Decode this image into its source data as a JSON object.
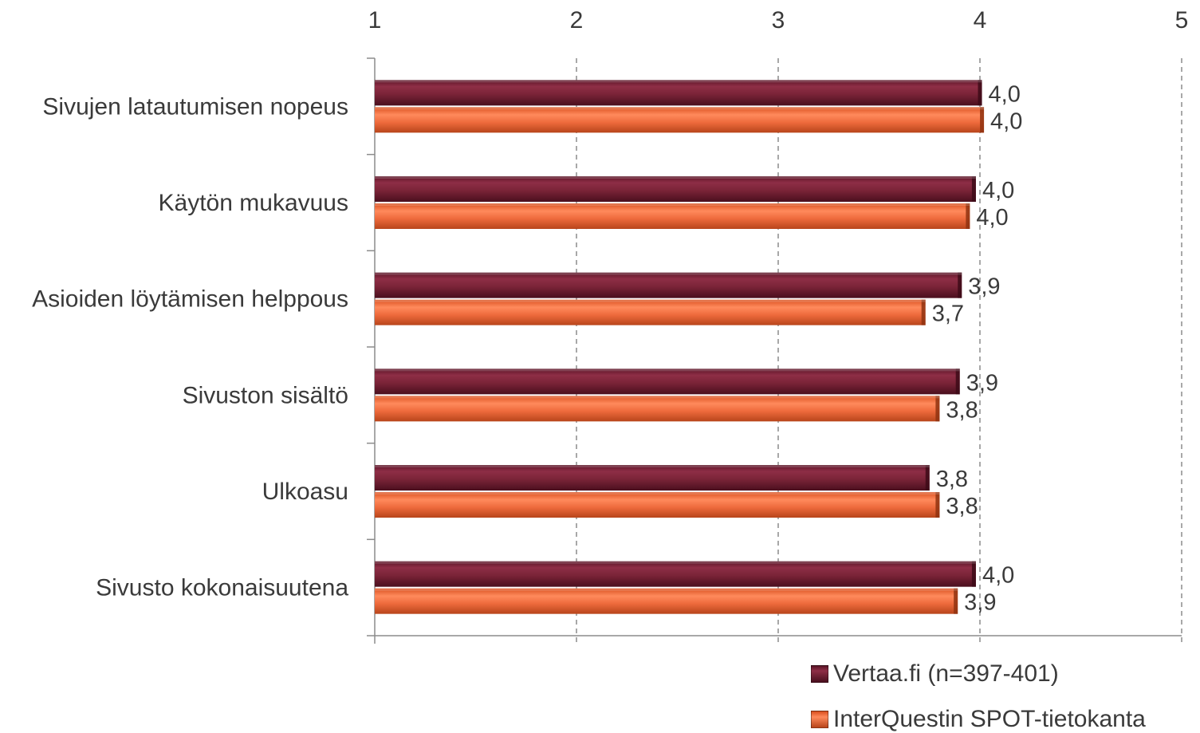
{
  "chart_data": {
    "type": "bar",
    "orientation": "horizontal",
    "categories": [
      "Sivujen latautumisen nopeus",
      "Käytön mukavuus",
      "Asioiden löytämisen helppous",
      "Sivuston sisältö",
      "Ulkoasu",
      "Sivusto kokonaisuutena"
    ],
    "series": [
      {
        "name": "Vertaa.fi (n=397-401)",
        "color": "#7B2438",
        "values": [
          4.01,
          3.98,
          3.91,
          3.9,
          3.75,
          3.98
        ],
        "labels": [
          "4,0",
          "4,0",
          "3,9",
          "3,9",
          "3,8",
          "4,0"
        ]
      },
      {
        "name": "InterQuestin SPOT-tietokanta",
        "color": "#EE6A3C",
        "values": [
          4.02,
          3.95,
          3.73,
          3.8,
          3.8,
          3.89
        ],
        "labels": [
          "4,0",
          "4,0",
          "3,7",
          "3,8",
          "3,8",
          "3,9"
        ]
      }
    ],
    "xlim": [
      1,
      5
    ],
    "xticks": [
      "1",
      "2",
      "3",
      "4",
      "5"
    ],
    "axis_position": "top",
    "grid": "vertical dashed",
    "legend_position": "bottom-right",
    "title": "",
    "xlabel": "",
    "ylabel": ""
  }
}
